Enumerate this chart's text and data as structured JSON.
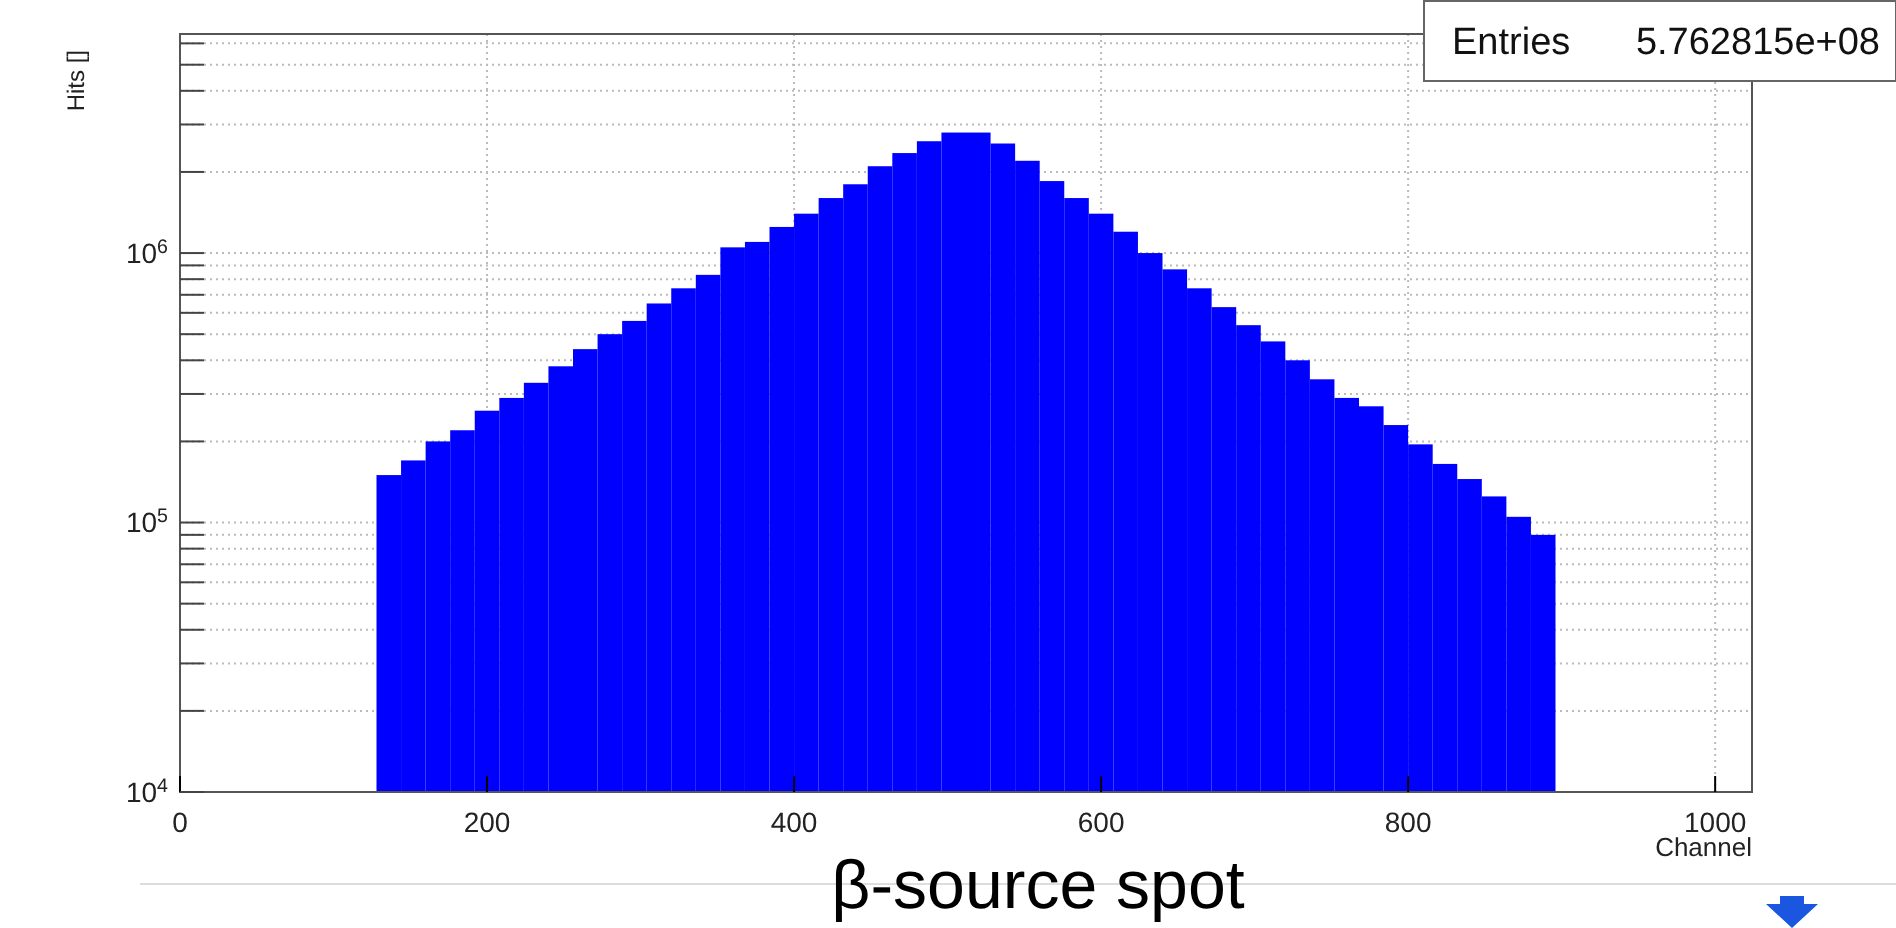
{
  "chart_data": {
    "type": "histogram",
    "ylabel": "Hits []",
    "xlabel": "Channel",
    "annotations": [
      "Entries 5.762815e+08",
      "β-source spot"
    ],
    "bins": [
      128,
      144,
      160,
      176,
      192,
      208,
      224,
      240,
      256,
      272,
      288,
      304,
      320,
      336,
      352,
      368,
      384,
      400,
      416,
      432,
      448,
      464,
      480,
      496,
      512,
      528,
      544,
      560,
      576,
      592,
      608,
      624,
      640,
      656,
      672,
      688,
      704,
      720,
      736,
      752,
      768,
      784,
      800,
      816,
      832,
      848,
      864,
      880,
      896
    ],
    "values": [
      150000,
      170000,
      200000,
      220000,
      260000,
      290000,
      330000,
      380000,
      440000,
      500000,
      560000,
      650000,
      740000,
      830000,
      1050000,
      1100000,
      1250000,
      1400000,
      1600000,
      1800000,
      2100000,
      2350000,
      2600000,
      2800000,
      2800000,
      2550000,
      2200000,
      1850000,
      1600000,
      1400000,
      1200000,
      1000000,
      870000,
      740000,
      630000,
      540000,
      470000,
      400000,
      340000,
      290000,
      270000,
      230000,
      195000,
      165000,
      145000,
      125000,
      105000,
      90000
    ],
    "color": "#0000ff",
    "log": true,
    "grid": true,
    "xlim": [
      0,
      1024
    ],
    "xticks": [
      0,
      200,
      400,
      600,
      800,
      1000
    ],
    "ylim": [
      10000,
      6500000
    ],
    "yticks": [
      {
        "value": 10000,
        "label": "10$^{4}$"
      },
      {
        "value": 20000,
        "label": null
      },
      {
        "value": 30000,
        "label": null
      },
      {
        "value": 40000,
        "label": null
      },
      {
        "value": 50000,
        "label": null
      },
      {
        "value": 60000,
        "label": null
      },
      {
        "value": 70000,
        "label": null
      },
      {
        "value": 80000,
        "label": null
      },
      {
        "value": 90000,
        "label": null
      },
      {
        "value": 100000,
        "label": "10$^{5}$"
      },
      {
        "value": 200000,
        "label": null
      },
      {
        "value": 300000,
        "label": null
      },
      {
        "value": 400000,
        "label": null
      },
      {
        "value": 500000,
        "label": null
      },
      {
        "value": 600000,
        "label": null
      },
      {
        "value": 700000,
        "label": null
      },
      {
        "value": 800000,
        "label": null
      },
      {
        "value": 900000,
        "label": null
      },
      {
        "value": 1000000,
        "label": "10$^{6}$"
      },
      {
        "value": 2000000,
        "label": null
      },
      {
        "value": 3000000,
        "label": null
      },
      {
        "value": 4000000,
        "label": null
      },
      {
        "value": 5000000,
        "label": null
      },
      {
        "value": 6000000,
        "label": null
      }
    ]
  }
}
